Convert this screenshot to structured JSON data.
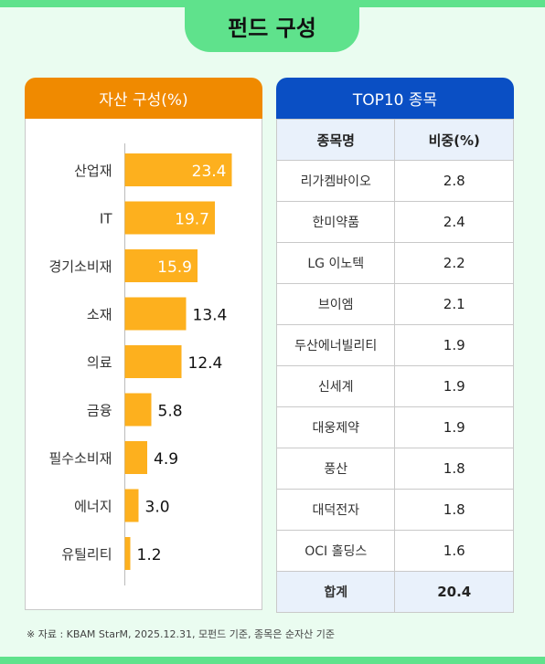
{
  "header": {
    "title": "펀드 구성"
  },
  "asset_card": {
    "title": "자산 구성(%)"
  },
  "top10_card": {
    "title": "TOP10 종목",
    "col_name": "종목명",
    "col_weight": "비중(%)",
    "rows": [
      {
        "name": "리가켐바이오",
        "weight": "2.8"
      },
      {
        "name": "한미약품",
        "weight": "2.4"
      },
      {
        "name": "LG 이노텍",
        "weight": "2.2"
      },
      {
        "name": "브이엠",
        "weight": "2.1"
      },
      {
        "name": "두산에너빌리티",
        "weight": "1.9"
      },
      {
        "name": "신세계",
        "weight": "1.9"
      },
      {
        "name": "대웅제약",
        "weight": "1.9"
      },
      {
        "name": "풍산",
        "weight": "1.8"
      },
      {
        "name": "대덕전자",
        "weight": "1.8"
      },
      {
        "name": "OCI 홀딩스",
        "weight": "1.6"
      }
    ],
    "total_label": "합계",
    "total_value": "20.4"
  },
  "footnote": "※ 자료 : KBAM StarM, 2025.12.31, 모펀드 기준, 종목은 순자산 기준",
  "colors": {
    "bar": "#fdb01e",
    "asset_header": "#f08a00",
    "top10_header": "#0a4fc4",
    "accent_green": "#5fe28c"
  },
  "chart_data": {
    "type": "bar",
    "orientation": "horizontal",
    "categories": [
      "산업재",
      "IT",
      "경기소비재",
      "소재",
      "의료",
      "금융",
      "필수소비재",
      "에너지",
      "유틸리티"
    ],
    "values": [
      23.4,
      19.7,
      15.9,
      13.4,
      12.4,
      5.8,
      4.9,
      3.0,
      1.2
    ],
    "value_labels": [
      "23.4",
      "19.7",
      "15.9",
      "13.4",
      "12.4",
      "5.8",
      "4.9",
      "3.0",
      "1.2"
    ],
    "title": "자산 구성(%)",
    "xlim": [
      0,
      25
    ],
    "grid": false
  }
}
